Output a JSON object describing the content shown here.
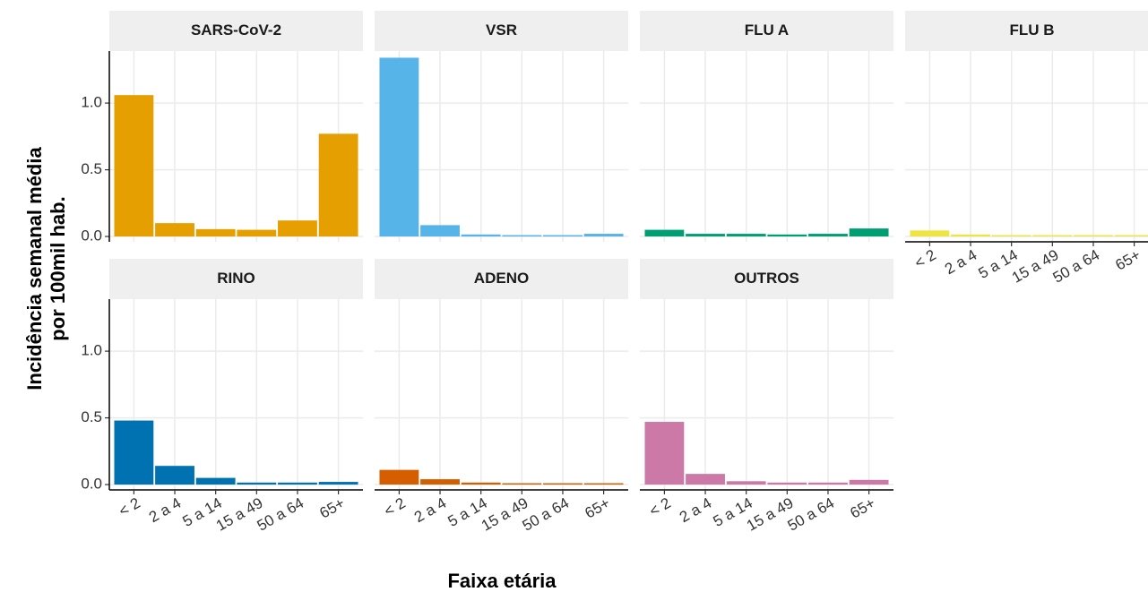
{
  "ylabel": [
    "Incidência  semanal média",
    "por 100mil hab."
  ],
  "xlabel": "Faixa etária",
  "chart_data": [
    {
      "type": "bar",
      "title": "SARS-CoV-2",
      "categories": [
        "< 2",
        "2 a 4",
        "5 a 14",
        "15 a 49",
        "50 a 64",
        "65+"
      ],
      "values": [
        1.06,
        0.1,
        0.055,
        0.05,
        0.12,
        0.77
      ],
      "color": "#E69F00",
      "ylim": [
        -0.04,
        1.39
      ],
      "yticks": [
        {
          "value": 0,
          "label": "0.0"
        },
        0.5,
        {
          "value": 1,
          "label": "1.0"
        }
      ],
      "grid": true
    },
    {
      "type": "bar",
      "title": "VSR",
      "categories": [
        "< 2",
        "2 a 4",
        "5 a 14",
        "15 a 49",
        "50 a 64",
        "65+"
      ],
      "values": [
        1.34,
        0.085,
        0.015,
        0.01,
        0.01,
        0.02
      ],
      "color": "#56B4E9",
      "ylim": [
        -0.04,
        1.39
      ],
      "yticks": [
        {
          "value": 0,
          "label": "0.0"
        },
        0.5,
        {
          "value": 1,
          "label": "1.0"
        }
      ],
      "grid": true
    },
    {
      "type": "bar",
      "title": "FLU A",
      "categories": [
        "< 2",
        "2 a 4",
        "5 a 14",
        "15 a 49",
        "50 a 64",
        "65+"
      ],
      "values": [
        0.05,
        0.02,
        0.02,
        0.015,
        0.02,
        0.06
      ],
      "color": "#009E73",
      "ylim": [
        -0.04,
        1.39
      ],
      "yticks": [
        {
          "value": 0,
          "label": "0.0"
        },
        0.5,
        {
          "value": 1,
          "label": "1.0"
        }
      ],
      "grid": true
    },
    {
      "type": "bar",
      "title": "FLU B",
      "categories": [
        "< 2",
        "2 a 4",
        "5 a 14",
        "15 a 49",
        "50 a 64",
        "65+"
      ],
      "values": [
        0.045,
        0.015,
        0.01,
        0.01,
        0.01,
        0.01
      ],
      "color": "#F0E442",
      "ylim": [
        -0.04,
        1.39
      ],
      "yticks": [
        {
          "value": 0,
          "label": "0.0"
        },
        0.5,
        {
          "value": 1,
          "label": "1.0"
        }
      ],
      "grid": true
    },
    {
      "type": "bar",
      "title": "RINO",
      "categories": [
        "< 2",
        "2 a 4",
        "5 a 14",
        "15 a 49",
        "50 a 64",
        "65+"
      ],
      "values": [
        0.48,
        0.14,
        0.05,
        0.015,
        0.015,
        0.02
      ],
      "color": "#0072B2",
      "ylim": [
        -0.04,
        1.39
      ],
      "yticks": [
        {
          "value": 0,
          "label": "0.0"
        },
        0.5,
        {
          "value": 1,
          "label": "1.0"
        }
      ],
      "grid": true
    },
    {
      "type": "bar",
      "title": "ADENO",
      "categories": [
        "< 2",
        "2 a 4",
        "5 a 14",
        "15 a 49",
        "50 a 64",
        "65+"
      ],
      "values": [
        0.11,
        0.04,
        0.015,
        0.01,
        0.01,
        0.01
      ],
      "color": "#D55E00",
      "ylim": [
        -0.04,
        1.39
      ],
      "yticks": [
        {
          "value": 0,
          "label": "0.0"
        },
        0.5,
        {
          "value": 1,
          "label": "1.0"
        }
      ],
      "grid": true
    },
    {
      "type": "bar",
      "title": "OUTROS",
      "categories": [
        "< 2",
        "2 a 4",
        "5 a 14",
        "15 a 49",
        "50 a 64",
        "65+"
      ],
      "values": [
        0.47,
        0.08,
        0.025,
        0.015,
        0.015,
        0.035
      ],
      "color": "#CC79A7",
      "ylim": [
        -0.04,
        1.39
      ],
      "yticks": [
        {
          "value": 0,
          "label": "0.0"
        },
        0.5,
        {
          "value": 1,
          "label": "1.0"
        }
      ],
      "grid": true
    }
  ]
}
